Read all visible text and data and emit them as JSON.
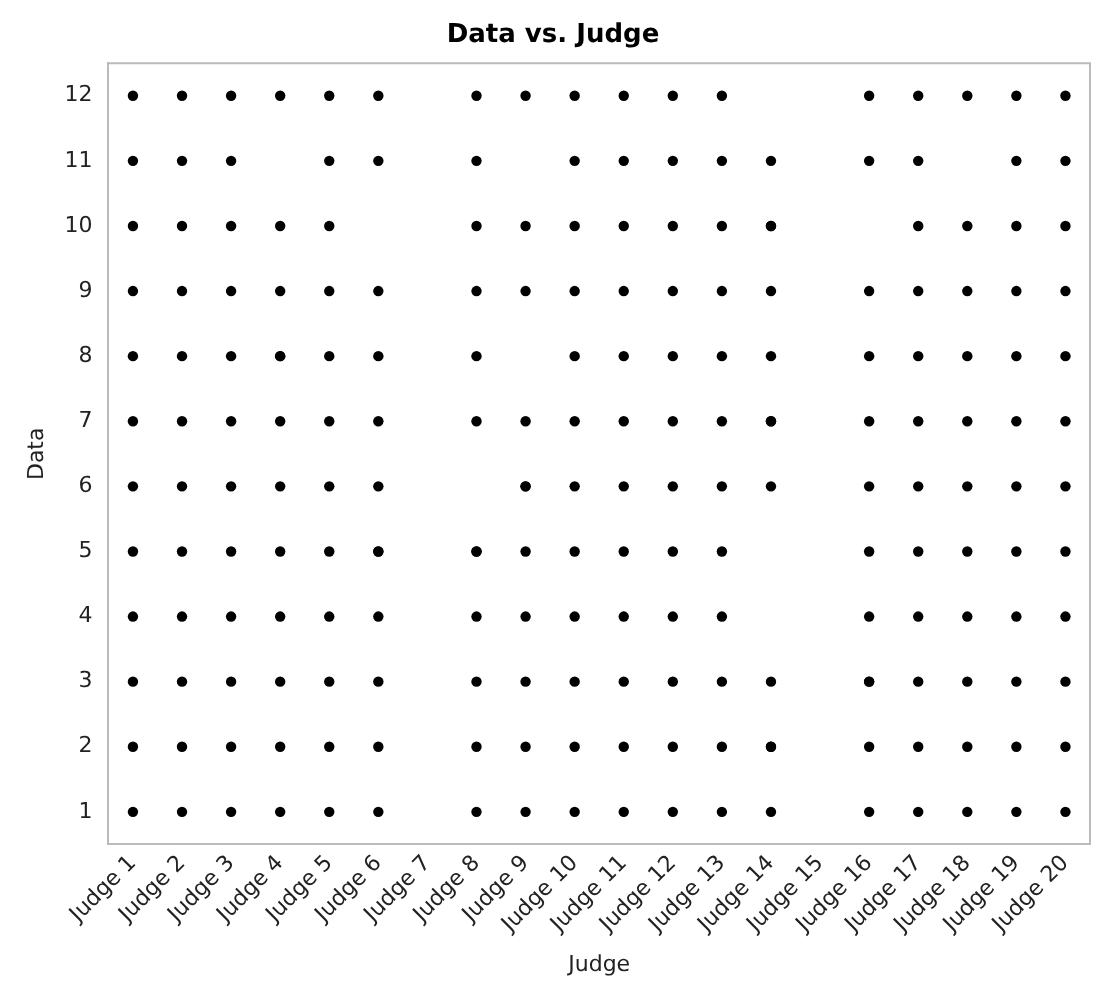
{
  "chart_data": {
    "type": "scatter",
    "title": "Data vs. Judge",
    "xlabel": "Judge",
    "ylabel": "Data",
    "categories": [
      "Judge 1",
      "Judge 2",
      "Judge 3",
      "Judge 4",
      "Judge 5",
      "Judge 6",
      "Judge 7",
      "Judge 8",
      "Judge 9",
      "Judge 10",
      "Judge 11",
      "Judge 12",
      "Judge 13",
      "Judge 14",
      "Judge 15",
      "Judge 16",
      "Judge 17",
      "Judge 18",
      "Judge 19",
      "Judge 20"
    ],
    "series": [
      {
        "color": "#000000",
        "x": [
          "Judge 1",
          "Judge 1",
          "Judge 1",
          "Judge 1",
          "Judge 1",
          "Judge 1",
          "Judge 1",
          "Judge 1",
          "Judge 1",
          "Judge 1",
          "Judge 1",
          "Judge 1",
          "Judge 2",
          "Judge 2",
          "Judge 2",
          "Judge 2",
          "Judge 2",
          "Judge 2",
          "Judge 2",
          "Judge 2",
          "Judge 2",
          "Judge 2",
          "Judge 2",
          "Judge 2",
          "Judge 3",
          "Judge 3",
          "Judge 3",
          "Judge 3",
          "Judge 3",
          "Judge 3",
          "Judge 3",
          "Judge 3",
          "Judge 3",
          "Judge 3",
          "Judge 3",
          "Judge 3",
          "Judge 4",
          "Judge 4",
          "Judge 4",
          "Judge 4",
          "Judge 4",
          "Judge 4",
          "Judge 4",
          "Judge 4",
          "Judge 4",
          "Judge 4",
          "Judge 4",
          "Judge 4",
          "Judge 5",
          "Judge 5",
          "Judge 5",
          "Judge 5",
          "Judge 5",
          "Judge 5",
          "Judge 5",
          "Judge 5",
          "Judge 5",
          "Judge 5",
          "Judge 5",
          "Judge 5",
          "Judge 6",
          "Judge 6",
          "Judge 6",
          "Judge 6",
          "Judge 6",
          "Judge 6",
          "Judge 6",
          "Judge 6",
          "Judge 6",
          "Judge 6",
          "Judge 6",
          "Judge 6",
          "Judge 8",
          "Judge 8",
          "Judge 8",
          "Judge 8",
          "Judge 8",
          "Judge 8",
          "Judge 8",
          "Judge 8",
          "Judge 8",
          "Judge 8",
          "Judge 8",
          "Judge 8",
          "Judge 9",
          "Judge 9",
          "Judge 9",
          "Judge 9",
          "Judge 9",
          "Judge 9",
          "Judge 9",
          "Judge 9",
          "Judge 9",
          "Judge 9",
          "Judge 9",
          "Judge 10",
          "Judge 10",
          "Judge 10",
          "Judge 10",
          "Judge 10",
          "Judge 10",
          "Judge 10",
          "Judge 10",
          "Judge 10",
          "Judge 10",
          "Judge 10",
          "Judge 10",
          "Judge 11",
          "Judge 11",
          "Judge 11",
          "Judge 11",
          "Judge 11",
          "Judge 11",
          "Judge 11",
          "Judge 11",
          "Judge 11",
          "Judge 11",
          "Judge 11",
          "Judge 11",
          "Judge 12",
          "Judge 12",
          "Judge 12",
          "Judge 12",
          "Judge 12",
          "Judge 12",
          "Judge 12",
          "Judge 12",
          "Judge 12",
          "Judge 12",
          "Judge 12",
          "Judge 12",
          "Judge 13",
          "Judge 13",
          "Judge 13",
          "Judge 13",
          "Judge 13",
          "Judge 13",
          "Judge 13",
          "Judge 13",
          "Judge 13",
          "Judge 13",
          "Judge 13",
          "Judge 13",
          "Judge 14",
          "Judge 14",
          "Judge 14",
          "Judge 14",
          "Judge 14",
          "Judge 14",
          "Judge 14",
          "Judge 14",
          "Judge 14",
          "Judge 14",
          "Judge 14",
          "Judge 14",
          "Judge 16",
          "Judge 16",
          "Judge 16",
          "Judge 16",
          "Judge 16",
          "Judge 16",
          "Judge 16",
          "Judge 16",
          "Judge 16",
          "Judge 16",
          "Judge 16",
          "Judge 16",
          "Judge 17",
          "Judge 17",
          "Judge 17",
          "Judge 17",
          "Judge 17",
          "Judge 17",
          "Judge 17",
          "Judge 17",
          "Judge 17",
          "Judge 17",
          "Judge 17",
          "Judge 17",
          "Judge 18",
          "Judge 18",
          "Judge 18",
          "Judge 18",
          "Judge 18",
          "Judge 18",
          "Judge 18",
          "Judge 18",
          "Judge 18",
          "Judge 18",
          "Judge 18",
          "Judge 19",
          "Judge 19",
          "Judge 19",
          "Judge 19",
          "Judge 19",
          "Judge 19",
          "Judge 19",
          "Judge 19",
          "Judge 19",
          "Judge 19",
          "Judge 19",
          "Judge 19",
          "Judge 20",
          "Judge 20",
          "Judge 20",
          "Judge 20",
          "Judge 20",
          "Judge 20",
          "Judge 20",
          "Judge 20",
          "Judge 20",
          "Judge 20",
          "Judge 20",
          "Judge 20"
        ],
        "values": [
          12,
          11,
          10,
          9,
          8,
          7,
          6,
          5,
          4,
          3,
          2,
          1,
          12,
          11,
          10,
          9,
          8,
          7,
          6,
          5,
          4,
          3,
          2,
          1,
          12,
          11,
          10,
          9,
          8,
          7,
          6,
          5,
          4,
          3,
          2,
          1,
          12,
          10,
          9,
          8,
          8,
          7,
          6,
          5,
          4,
          3,
          2,
          1,
          12,
          11,
          10,
          9,
          8,
          7,
          6,
          5,
          4,
          3,
          2,
          1,
          12,
          11,
          9,
          8,
          7,
          6,
          5,
          5,
          4,
          3,
          2,
          1,
          12,
          11,
          10,
          9,
          8,
          7,
          5,
          5,
          4,
          3,
          2,
          1,
          12,
          10,
          9,
          7,
          6,
          6,
          5,
          4,
          3,
          2,
          1,
          12,
          11,
          10,
          9,
          8,
          7,
          6,
          5,
          4,
          3,
          2,
          1,
          12,
          11,
          10,
          9,
          8,
          7,
          6,
          5,
          4,
          3,
          2,
          1,
          12,
          11,
          10,
          9,
          8,
          7,
          6,
          5,
          4,
          3,
          2,
          1,
          12,
          11,
          10,
          9,
          8,
          7,
          6,
          5,
          4,
          3,
          2,
          1,
          11,
          10,
          10,
          9,
          8,
          7,
          7,
          6,
          3,
          2,
          2,
          1,
          12,
          11,
          9,
          8,
          7,
          6,
          5,
          4,
          3,
          3,
          2,
          1,
          12,
          11,
          10,
          9,
          8,
          7,
          6,
          5,
          4,
          3,
          2,
          1,
          12,
          10,
          9,
          8,
          7,
          6,
          5,
          4,
          3,
          2,
          1,
          12,
          11,
          10,
          9,
          8,
          7,
          6,
          5,
          4,
          3,
          2,
          1,
          12,
          11,
          10,
          9,
          8,
          7,
          6,
          5,
          4,
          3,
          2,
          1
        ]
      }
    ],
    "ylim": [
      0.5,
      12.5
    ],
    "yticks": [
      1,
      2,
      3,
      4,
      5,
      6,
      7,
      8,
      9,
      10,
      11,
      12
    ],
    "grid": false,
    "marker": "circle",
    "legend": false
  }
}
